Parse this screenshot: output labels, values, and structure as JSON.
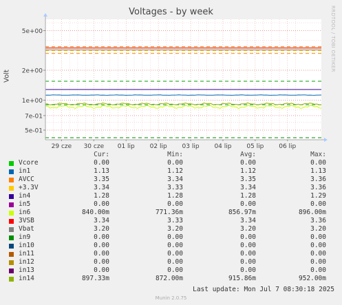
{
  "chart_data": {
    "type": "line",
    "title": "Voltages - by week",
    "ylabel": "Volt",
    "yscale": "log",
    "ylim": [
      0.4,
      6.5
    ],
    "yticks": [
      {
        "value": 5,
        "label": "5e+00"
      },
      {
        "value": 2,
        "label": "2e+00"
      },
      {
        "value": 1,
        "label": "1e+00"
      },
      {
        "value": 0.7,
        "label": "7e-01"
      },
      {
        "value": 0.5,
        "label": "5e-01"
      }
    ],
    "xticks": [
      "29 cze",
      "30 cze",
      "01 lip",
      "02 lip",
      "03 lip",
      "04 lip",
      "05 lip",
      "06 lip"
    ],
    "series": [
      {
        "name": "Vcore",
        "color": "#00cc00",
        "cur": "0.00",
        "min": "0.00",
        "avg": "0.00",
        "max": "0.00",
        "value": 0
      },
      {
        "name": "in1",
        "color": "#0066b3",
        "cur": "1.13",
        "min": "1.12",
        "avg": "1.12",
        "max": "1.13",
        "value": 1.125
      },
      {
        "name": "AVCC",
        "color": "#ff8000",
        "cur": "3.35",
        "min": "3.34",
        "avg": "3.35",
        "max": "3.36",
        "value": 3.35
      },
      {
        "name": "+3.3V",
        "color": "#ffcc00",
        "cur": "3.34",
        "min": "3.33",
        "avg": "3.34",
        "max": "3.36",
        "value": 3.34
      },
      {
        "name": "in4",
        "color": "#330099",
        "cur": "1.28",
        "min": "1.28",
        "avg": "1.28",
        "max": "1.29",
        "value": 1.28
      },
      {
        "name": "in5",
        "color": "#990099",
        "cur": "0.00",
        "min": "0.00",
        "avg": "0.00",
        "max": "0.00",
        "value": 0
      },
      {
        "name": "in6",
        "color": "#ccff00",
        "cur": "840.00m",
        "min": "771.36m",
        "avg": "856.97m",
        "max": "896.00m",
        "value": 0.857
      },
      {
        "name": "3VSB",
        "color": "#ff0000",
        "cur": "3.34",
        "min": "3.33",
        "avg": "3.34",
        "max": "3.36",
        "value": 3.34
      },
      {
        "name": "Vbat",
        "color": "#808080",
        "cur": "3.20",
        "min": "3.20",
        "avg": "3.20",
        "max": "3.20",
        "value": 3.2
      },
      {
        "name": "in9",
        "color": "#008f00",
        "cur": "0.00",
        "min": "0.00",
        "avg": "0.00",
        "max": "0.00",
        "value": 0
      },
      {
        "name": "in10",
        "color": "#00487d",
        "cur": "0.00",
        "min": "0.00",
        "avg": "0.00",
        "max": "0.00",
        "value": 0
      },
      {
        "name": "in11",
        "color": "#b35a00",
        "cur": "0.00",
        "min": "0.00",
        "avg": "0.00",
        "max": "0.00",
        "value": 0
      },
      {
        "name": "in12",
        "color": "#b38f00",
        "cur": "0.00",
        "min": "0.00",
        "avg": "0.00",
        "max": "0.00",
        "value": 0
      },
      {
        "name": "in13",
        "color": "#6b006b",
        "cur": "0.00",
        "min": "0.00",
        "avg": "0.00",
        "max": "0.00",
        "value": 0
      },
      {
        "name": "in14",
        "color": "#8fb300",
        "cur": "897.33m",
        "min": "872.00m",
        "avg": "915.86m",
        "max": "952.00m",
        "value": 0.916
      }
    ],
    "warning_lines": [
      {
        "value": 3.45,
        "color": "#e07000"
      },
      {
        "value": 3.15,
        "color": "#ffcc00"
      },
      {
        "value": 2.95,
        "color": "#ff9000"
      },
      {
        "value": 1.55,
        "color": "#00a000"
      },
      {
        "value": 0.9,
        "color": "#00a000"
      },
      {
        "value": 0.42,
        "color": "#008f00"
      }
    ]
  },
  "legend_header": {
    "cur": "Cur:",
    "min": "Min:",
    "avg": "Avg:",
    "max": "Max:"
  },
  "side_text": "RRDTOOL / TOBI OETIKER",
  "last_update": "Last update: Mon Jul  7 08:30:18 2025",
  "footer": "Munin 2.0.75"
}
